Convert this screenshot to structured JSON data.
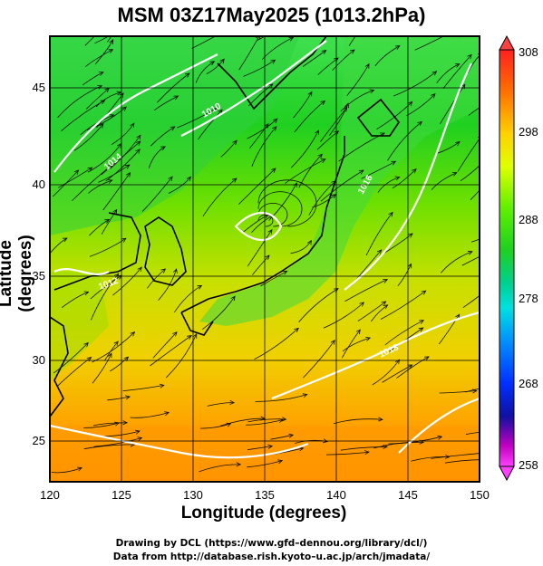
{
  "title": "MSM 03Z17May2025 (1013.2hPa)",
  "xlabel": "Longitude (degrees)",
  "ylabel": "Latitude  (degrees)",
  "credit_line1": "Drawing by DCL (https://www.gfd–dennou.org/library/dcl/)",
  "credit_line2": "Data from http://database.rish.kyoto–u.ac.jp/arch/jmadata/",
  "x_ticks": [
    "120",
    "125",
    "130",
    "135",
    "140",
    "145",
    "150"
  ],
  "y_ticks": [
    "25",
    "30",
    "35",
    "40",
    "45"
  ],
  "colorbar": {
    "ticks": [
      "308",
      "298",
      "288",
      "278",
      "268",
      "258"
    ],
    "colors": [
      "#ff2020",
      "#ff8000",
      "#ffd000",
      "#e0ff00",
      "#80ff00",
      "#20e020",
      "#00d080",
      "#00e0e0",
      "#0090ff",
      "#0030ff",
      "#0000a0",
      "#ff00ff"
    ]
  },
  "contour_labels": [
    "1010",
    "1012",
    "1014",
    "1016",
    "1018"
  ]
}
